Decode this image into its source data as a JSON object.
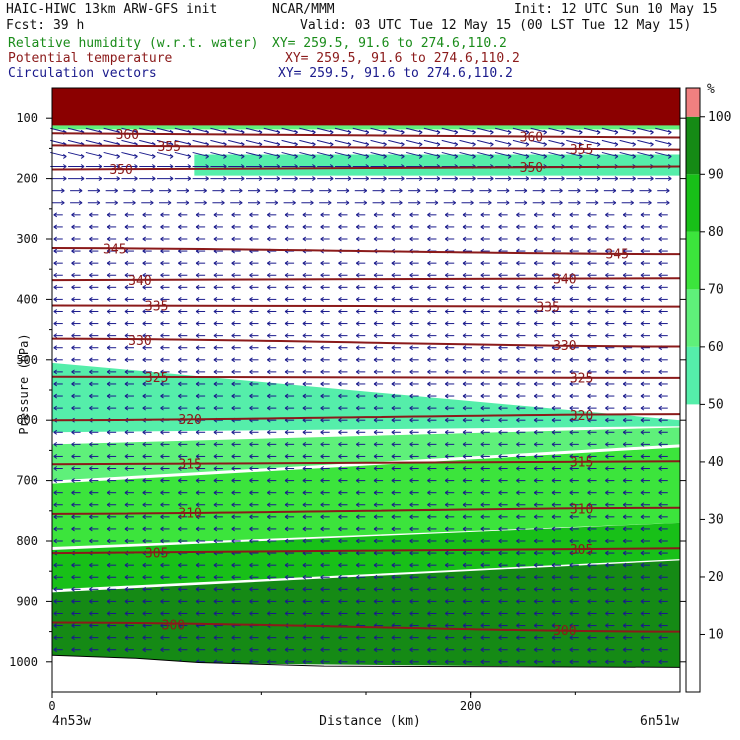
{
  "header": {
    "model": "HAIC-HIWC 13km ARW-GFS init",
    "org": "NCAR/MMM",
    "init": "Init: 12 UTC Sun 10 May 15",
    "fcst": "Fcst:   39 h",
    "valid": "Valid: 03 UTC Tue 12 May 15 (00 LST Tue 12 May 15)",
    "fields": [
      {
        "name": "Relative humidity (w.r.t. water)",
        "xy": "XY= 259.5, 91.6 to 274.6,110.2",
        "color": "#1a8c1a"
      },
      {
        "name": "Potential temperature",
        "xy": "XY= 259.5, 91.6 to 274.6,110.2",
        "color": "#8b1a1a"
      },
      {
        "name": "Circulation vectors",
        "xy": "XY= 259.5, 91.6 to 274.6,110.2",
        "color": "#1a1a8c"
      }
    ]
  },
  "chart_data": {
    "type": "cross-section (filled contour + line contour + vectors)",
    "xlabel": "Distance (km)",
    "ylabel": "Pressure (hPa)",
    "x_ticks": [
      0,
      200
    ],
    "x_end_labels": {
      "left": "4n53w",
      "right": "6n51w"
    },
    "x_range_km": [
      0,
      300
    ],
    "y_ticks": [
      100,
      200,
      300,
      400,
      500,
      600,
      700,
      800,
      900,
      1000
    ],
    "y_range_hPa": [
      50,
      1050
    ],
    "colorbar": {
      "unit": "%",
      "ticks": [
        10,
        20,
        30,
        40,
        50,
        60,
        70,
        80,
        90,
        100
      ],
      "bands": [
        {
          "lo": 50,
          "hi": 60,
          "color": "#55eeaa"
        },
        {
          "lo": 60,
          "hi": 70,
          "color": "#5ff07a"
        },
        {
          "lo": 70,
          "hi": 80,
          "color": "#3ce43c"
        },
        {
          "lo": 80,
          "hi": 90,
          "color": "#18c018"
        },
        {
          "lo": 90,
          "hi": 100,
          "color": "#158a15"
        },
        {
          "lo": 100,
          "hi": 105,
          "color": "#f08080"
        }
      ]
    },
    "rh_regions": [
      {
        "band": "50-60",
        "top_left": 505,
        "top_right": 600,
        "bottom_left": 620,
        "bottom_right": 610
      },
      {
        "band": "60-70",
        "top_left": 640,
        "top_right": 612,
        "bottom_left": 700,
        "bottom_right": 640
      },
      {
        "band": "70-80",
        "top_left": 705,
        "top_right": 645,
        "bottom_left": 810,
        "bottom_right": 770
      },
      {
        "band": "80-90",
        "top_left": 815,
        "top_right": 770,
        "bottom_left": 880,
        "bottom_right": 830
      },
      {
        "band": "90-100",
        "top_left": 885,
        "top_right": 832,
        "bottom_left": 1000,
        "bottom_right": 1010
      },
      {
        "band": "50-60",
        "top_left": 160,
        "top_right": 160,
        "bottom_left": 195,
        "bottom_right": 195,
        "x_start_km": 68
      }
    ],
    "theta_contours": [
      {
        "value": 360,
        "p_left": 125,
        "p_right": 132,
        "label_left_km": 36,
        "label_right_km": 229
      },
      {
        "value": 355,
        "p_left": 145,
        "p_right": 152,
        "label_left_km": 56,
        "label_right_km": 253
      },
      {
        "value": 350,
        "p_left": 185,
        "p_right": 180,
        "label_left_km": 33,
        "label_right_km": 229
      },
      {
        "value": 345,
        "p_left": 315,
        "p_right": 325,
        "label_left_km": 30,
        "label_right_km": 270
      },
      {
        "value": 340,
        "p_left": 368,
        "p_right": 365,
        "label_left_km": 42,
        "label_right_km": 245
      },
      {
        "value": 335,
        "p_left": 410,
        "p_right": 412,
        "label_left_km": 50,
        "label_right_km": 237
      },
      {
        "value": 330,
        "p_left": 465,
        "p_right": 478,
        "label_left_km": 42,
        "label_right_km": 245
      },
      {
        "value": 325,
        "p_left": 528,
        "p_right": 530,
        "label_left_km": 50,
        "label_right_km": 253
      },
      {
        "value": 320,
        "p_left": 600,
        "p_right": 590,
        "label_left_km": 66,
        "label_right_km": 253
      },
      {
        "value": 315,
        "p_left": 673,
        "p_right": 668,
        "label_left_km": 66,
        "label_right_km": 253
      },
      {
        "value": 310,
        "p_left": 755,
        "p_right": 745,
        "label_left_km": 66,
        "label_right_km": 253
      },
      {
        "value": 305,
        "p_left": 820,
        "p_right": 812,
        "label_left_km": 50,
        "label_right_km": 253
      },
      {
        "value": 300,
        "p_left": 935,
        "p_right": 950,
        "label_left_km": 58,
        "label_right_km": 245
      }
    ],
    "vectors": {
      "description": "Circulation vectors; strong eastward flow aloft (100-250 hPa), weak westward flow in mid/lower troposphere",
      "color": "#1a1a8c"
    },
    "surface_p_left": 990,
    "surface_p_right": 1010,
    "top_band_color": "#8b0000"
  }
}
